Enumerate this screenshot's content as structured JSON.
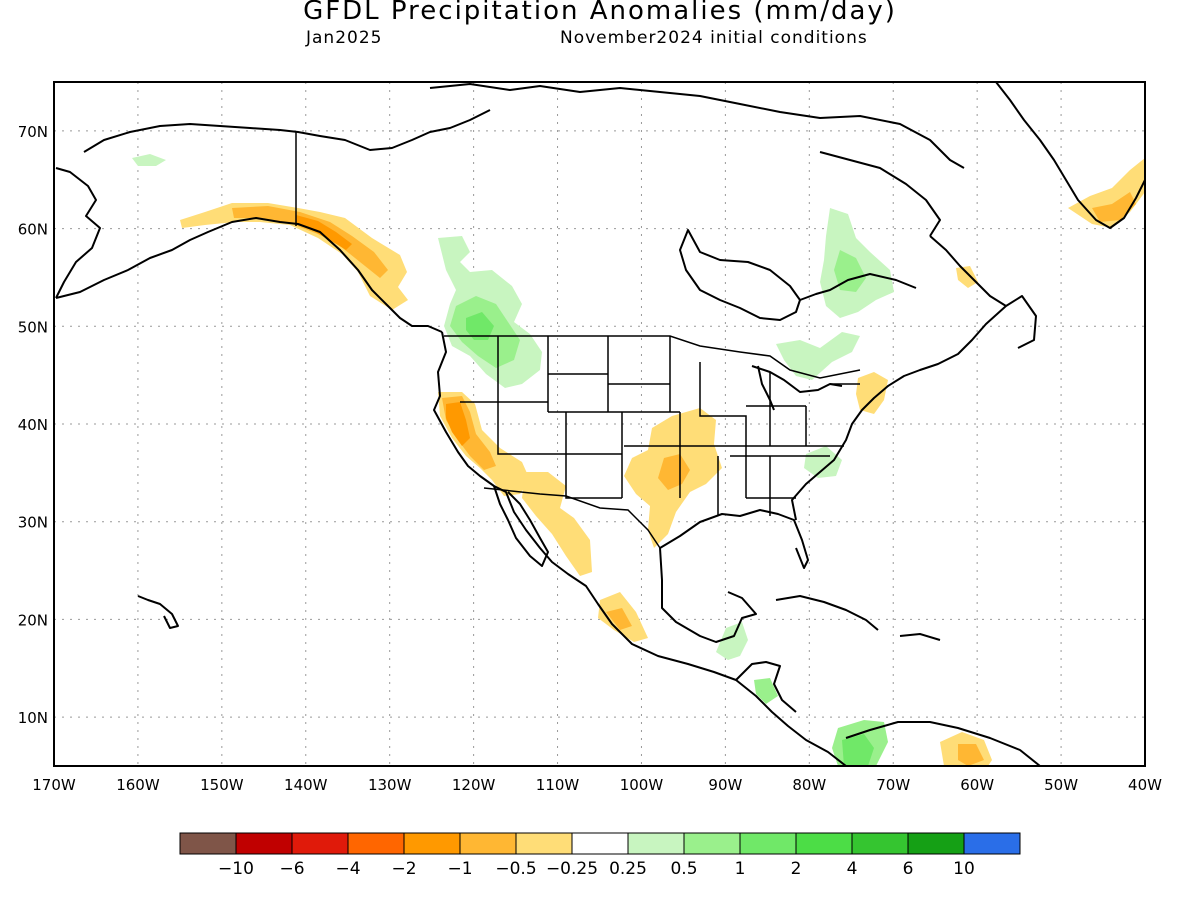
{
  "header": {
    "title": "GFDL Precipitation Anomalies (mm/day)",
    "valid_month": "Jan2025",
    "initial_conditions": "November2024 initial conditions"
  },
  "axes": {
    "lat_ticks": [
      "70N",
      "60N",
      "50N",
      "40N",
      "30N",
      "20N",
      "10N"
    ],
    "lat_values": [
      70,
      60,
      50,
      40,
      30,
      20,
      10
    ],
    "lon_ticks": [
      "170W",
      "160W",
      "150W",
      "140W",
      "130W",
      "120W",
      "110W",
      "100W",
      "90W",
      "80W",
      "70W",
      "60W",
      "50W",
      "40W"
    ],
    "lon_values": [
      -170,
      -160,
      -150,
      -140,
      -130,
      -120,
      -110,
      -100,
      -90,
      -80,
      -70,
      -60,
      -50,
      -40
    ],
    "lon_range": [
      -170,
      -40
    ],
    "lat_range": [
      5,
      75
    ],
    "grid": "dotted"
  },
  "colorbar": {
    "colors": [
      "#7f5548",
      "#c00000",
      "#e01a0a",
      "#ff6600",
      "#ff9900",
      "#ffb733",
      "#ffdd77",
      "#ffffff",
      "#c8f5c0",
      "#9af08c",
      "#70e868",
      "#4cdd46",
      "#35c530",
      "#15a015",
      "#2a6ee8"
    ],
    "labels": [
      "−10",
      "−6",
      "−4",
      "−2",
      "−1",
      "−0.5",
      "−0.25",
      "0.25",
      "0.5",
      "1",
      "2",
      "4",
      "6",
      "10"
    ]
  },
  "anomalies": [
    {
      "name": "gulf-of-alaska-coast-dry",
      "color": "#ffb733",
      "lon": -140,
      "lat": 60
    },
    {
      "name": "california-dry",
      "color": "#ffb733",
      "lon": -120,
      "lat": 38
    },
    {
      "name": "southern-plains-dry",
      "color": "#ffdd77",
      "lon": -97,
      "lat": 35
    },
    {
      "name": "mexico-west-coast-dry",
      "color": "#ffdd77",
      "lon": -107,
      "lat": 28
    },
    {
      "name": "pacific-northwest-wet",
      "color": "#9af08c",
      "lon": -120,
      "lat": 50
    },
    {
      "name": "quebec-wet",
      "color": "#c8f5c0",
      "lon": -76,
      "lat": 55
    },
    {
      "name": "colombia-wet",
      "color": "#70e868",
      "lon": -74,
      "lat": 7
    },
    {
      "name": "greenland-south-dry",
      "color": "#ffb733",
      "lon": -45,
      "lat": 61
    }
  ]
}
